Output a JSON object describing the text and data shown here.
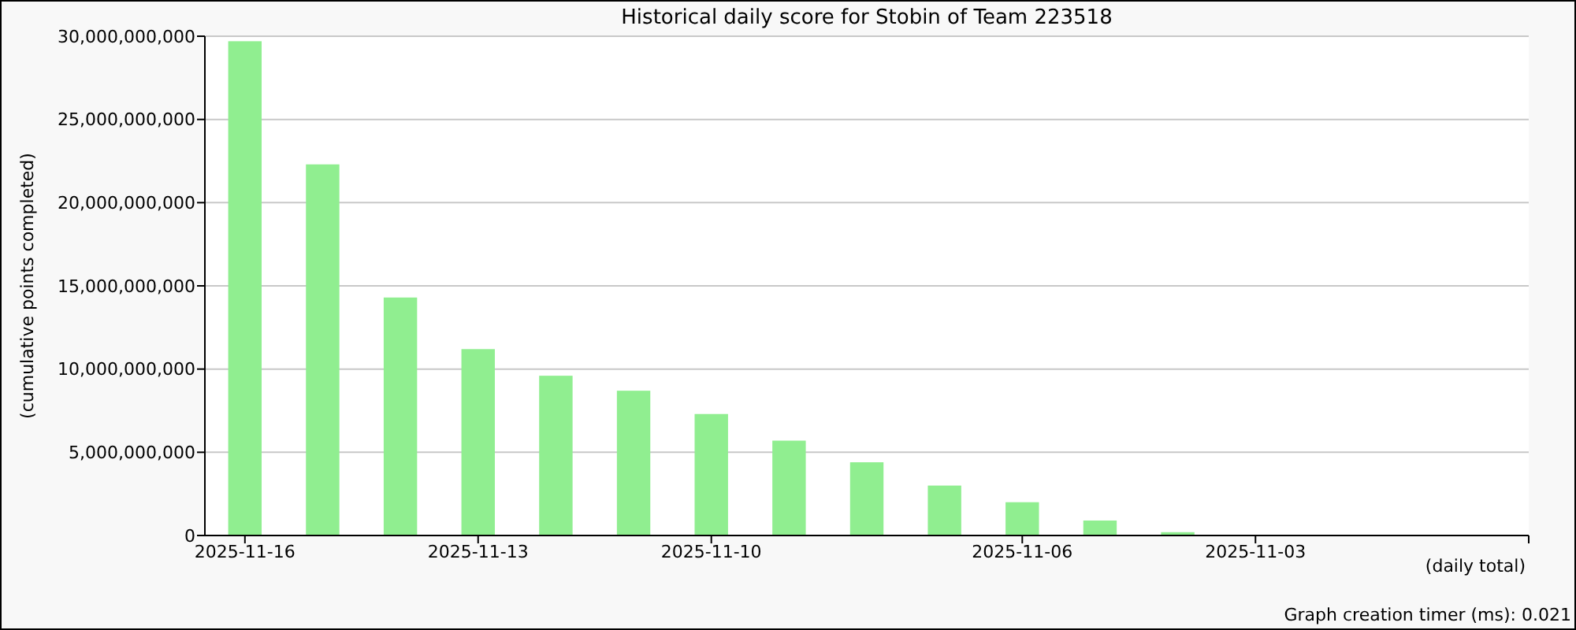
{
  "chart_data": {
    "type": "bar",
    "title": "Historical daily score for Stobin of Team 223518",
    "xlabel": "(daily total)",
    "ylabel": "(cumulative points completed)",
    "annotations": [
      "Graph creation timer (ms): 0.021"
    ],
    "categories": [
      "2025-11-16",
      null,
      null,
      "2025-11-13",
      null,
      null,
      "2025-11-10",
      null,
      null,
      null,
      "2025-11-06",
      null,
      null,
      "2025-11-03",
      null,
      null,
      null
    ],
    "values": [
      29700000000,
      22300000000,
      14300000000,
      11200000000,
      9600000000,
      8700000000,
      7300000000,
      5700000000,
      4400000000,
      3000000000,
      2000000000,
      900000000,
      200000000,
      null,
      null,
      null,
      null
    ],
    "color": "#90ee90",
    "ylim": [
      0,
      30000000000
    ],
    "yticks": [
      {
        "value": 0,
        "label": "0"
      },
      {
        "value": 5000000000,
        "label": "5,000,000,000"
      },
      {
        "value": 10000000000,
        "label": "10,000,000,000"
      },
      {
        "value": 15000000000,
        "label": "15,000,000,000"
      },
      {
        "value": 20000000000,
        "label": "20,000,000,000"
      },
      {
        "value": 25000000000,
        "label": "25,000,000,000"
      },
      {
        "value": 30000000000,
        "label": "30,000,000,000"
      }
    ],
    "grid": "y"
  }
}
